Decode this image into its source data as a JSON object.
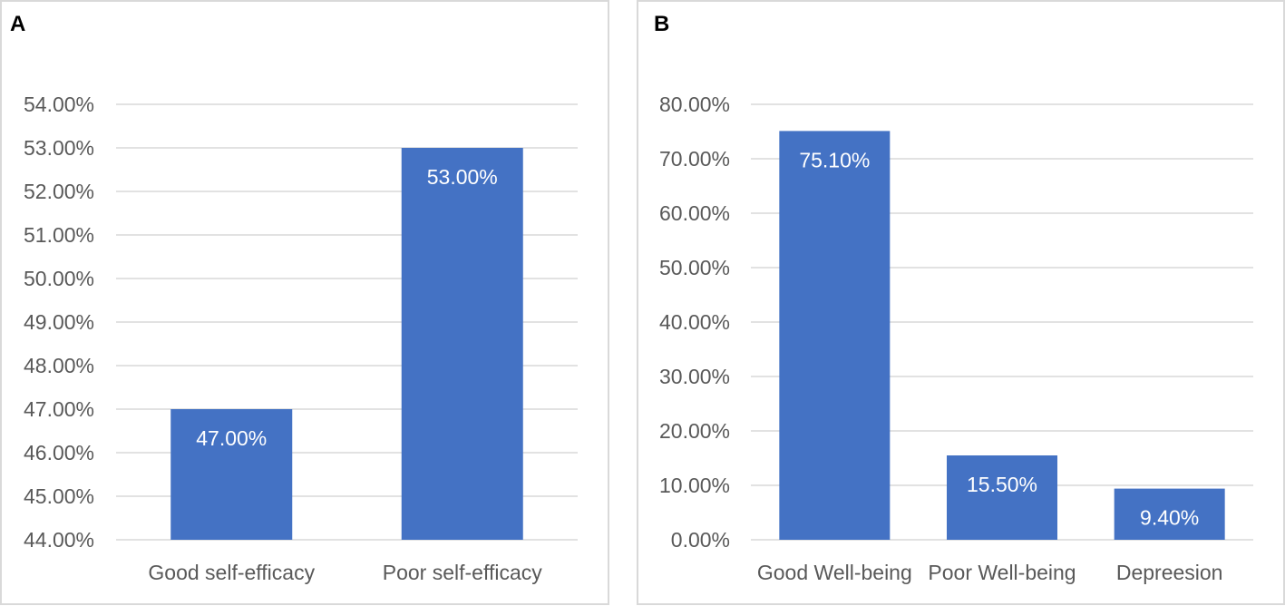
{
  "colors": {
    "bar": "#4472c4",
    "gridline": "#d9d9d9",
    "tick_text": "#595959",
    "data_label_text": "#ffffff"
  },
  "chart_data": [
    {
      "panel": "A",
      "type": "bar",
      "title": "",
      "xlabel": "",
      "ylabel": "",
      "categories": [
        "Good self-efficacy",
        "Poor self-efficacy"
      ],
      "values": [
        47.0,
        53.0
      ],
      "data_labels": [
        "47.00%",
        "53.00%"
      ],
      "ylim": [
        44,
        54
      ],
      "yticks": [
        44,
        45,
        46,
        47,
        48,
        49,
        50,
        51,
        52,
        53,
        54
      ],
      "ytick_labels": [
        "44.00%",
        "45.00%",
        "46.00%",
        "47.00%",
        "48.00%",
        "49.00%",
        "50.00%",
        "51.00%",
        "52.00%",
        "53.00%",
        "54.00%"
      ],
      "grid": true,
      "legend": "none"
    },
    {
      "panel": "B",
      "type": "bar",
      "title": "",
      "xlabel": "",
      "ylabel": "",
      "categories": [
        "Good Well-being",
        "Poor Well-being",
        "Depreesion"
      ],
      "values": [
        75.1,
        15.5,
        9.4
      ],
      "data_labels": [
        "75.10%",
        "15.50%",
        "9.40%"
      ],
      "ylim": [
        0,
        80
      ],
      "yticks": [
        0,
        10,
        20,
        30,
        40,
        50,
        60,
        70,
        80
      ],
      "ytick_labels": [
        "0.00%",
        "10.00%",
        "20.00%",
        "30.00%",
        "40.00%",
        "50.00%",
        "60.00%",
        "70.00%",
        "80.00%"
      ],
      "grid": true,
      "legend": "none"
    }
  ]
}
